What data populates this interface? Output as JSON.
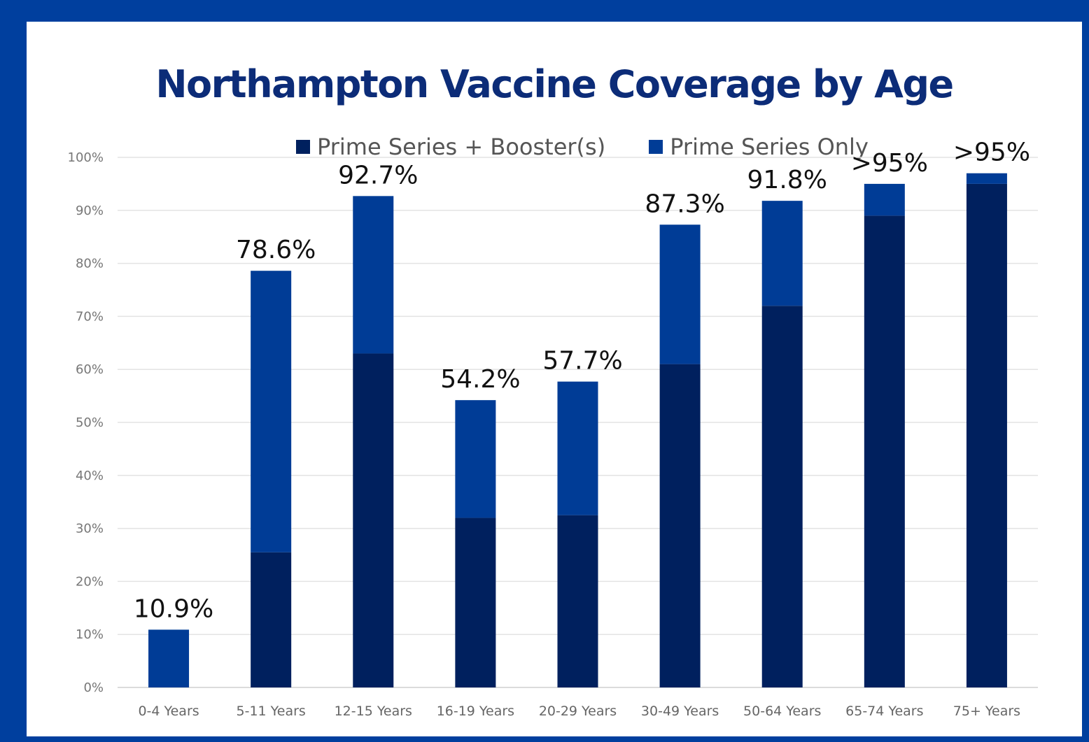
{
  "chart_data": {
    "type": "bar",
    "stacked": true,
    "title": "Northampton Vaccine Coverage by Age",
    "xlabel": "",
    "ylabel": "",
    "ylim": [
      0,
      100
    ],
    "yticks": [
      0,
      10,
      20,
      30,
      40,
      50,
      60,
      70,
      80,
      90,
      100
    ],
    "ytick_labels": [
      "0%",
      "10%",
      "20%",
      "30%",
      "40%",
      "50%",
      "60%",
      "70%",
      "80%",
      "90%",
      "100%"
    ],
    "grid": true,
    "legend_position": "top",
    "categories": [
      "0-4 Years",
      "5-11 Years",
      "12-15 Years",
      "16-19 Years",
      "20-29 Years",
      "30-49 Years",
      "50-64 Years",
      "65-74 Years",
      "75+ Years"
    ],
    "series": [
      {
        "name": "Prime Series + Booster(s)",
        "color": "#00205e",
        "values": [
          0,
          25.5,
          63,
          32,
          32.5,
          61,
          72,
          89,
          95
        ]
      },
      {
        "name": "Prime Series Only",
        "color": "#003c96",
        "values": [
          10.9,
          53.1,
          29.7,
          22.2,
          25.2,
          26.3,
          19.8,
          6,
          2
        ]
      }
    ],
    "totals": [
      10.9,
      78.6,
      92.7,
      54.2,
      57.7,
      87.3,
      91.8,
      95,
      97
    ],
    "data_labels": [
      "10.9%",
      "78.6%",
      "92.7%",
      "54.2%",
      "57.7%",
      "87.3%",
      "91.8%",
      ">95%",
      ">95%"
    ]
  }
}
